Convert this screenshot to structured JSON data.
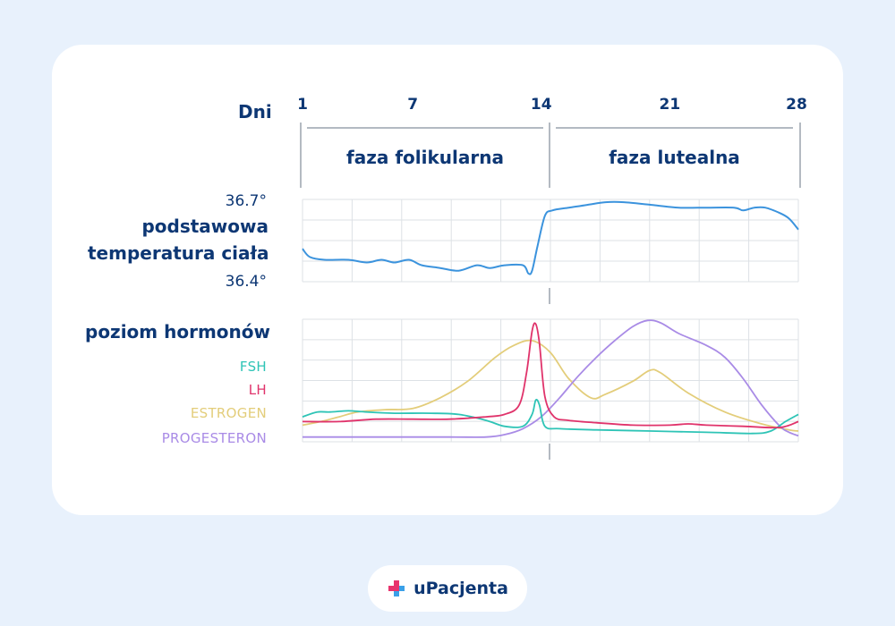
{
  "brand": {
    "name": "uPacjenta",
    "colors": {
      "primary": "#0d3774",
      "accent_pink": "#e8336d",
      "accent_blue": "#3aa0e8"
    },
    "icon": "plus-cross-icon"
  },
  "chart_data": {
    "type": "line",
    "days_title": "Dni",
    "x_ticks": [
      1,
      7,
      14,
      21,
      28
    ],
    "xlim": [
      1,
      28
    ],
    "phases": [
      {
        "label": "faza folikularna",
        "from": 1,
        "to": 14
      },
      {
        "label": "faza lutealna",
        "from": 14,
        "to": 28
      }
    ],
    "temperature": {
      "title_line1": "podstawowa",
      "title_line2": "temperatura ciała",
      "ymax_label": "36.7°",
      "ymin_label": "36.4°",
      "ylim": [
        36.4,
        36.7
      ],
      "color": "#3b93dd",
      "series": [
        {
          "name": "",
          "values": [
            [
              1,
              36.52
            ],
            [
              1.4,
              36.49
            ],
            [
              2.2,
              36.48
            ],
            [
              3.5,
              36.48
            ],
            [
              4.5,
              36.47
            ],
            [
              5.3,
              36.48
            ],
            [
              6,
              36.47
            ],
            [
              6.8,
              36.48
            ],
            [
              7.5,
              36.46
            ],
            [
              8.5,
              36.45
            ],
            [
              9.5,
              36.44
            ],
            [
              10.5,
              36.46
            ],
            [
              11.2,
              36.45
            ],
            [
              12,
              36.46
            ],
            [
              13,
              36.46
            ],
            [
              13.3,
              36.43
            ],
            [
              13.5,
              36.44
            ],
            [
              13.8,
              36.53
            ],
            [
              14.2,
              36.64
            ],
            [
              14.6,
              36.66
            ],
            [
              15.5,
              36.67
            ],
            [
              16.5,
              36.68
            ],
            [
              17.5,
              36.69
            ],
            [
              18.5,
              36.69
            ],
            [
              20,
              36.68
            ],
            [
              21.5,
              36.67
            ],
            [
              23,
              36.67
            ],
            [
              24.5,
              36.67
            ],
            [
              25,
              36.66
            ],
            [
              25.6,
              36.67
            ],
            [
              26.2,
              36.67
            ],
            [
              27,
              36.65
            ],
            [
              27.5,
              36.63
            ],
            [
              28,
              36.59
            ]
          ]
        }
      ]
    },
    "hormones": {
      "title": "poziom hormonów",
      "ylim": [
        0,
        100
      ],
      "series": [
        {
          "name": "FSH",
          "color": "#2ec4b6",
          "values": [
            [
              1,
              18
            ],
            [
              1.8,
              22
            ],
            [
              2.5,
              22
            ],
            [
              3.5,
              23
            ],
            [
              4.5,
              22
            ],
            [
              6,
              21
            ],
            [
              8,
              21
            ],
            [
              9.5,
              20
            ],
            [
              11,
              15
            ],
            [
              12,
              10
            ],
            [
              13,
              10
            ],
            [
              13.5,
              20
            ],
            [
              13.7,
              32
            ],
            [
              13.9,
              28
            ],
            [
              14.2,
              10
            ],
            [
              15,
              8
            ],
            [
              17,
              7
            ],
            [
              20,
              6
            ],
            [
              23,
              5
            ],
            [
              25.5,
              4
            ],
            [
              26.5,
              6
            ],
            [
              27.3,
              14
            ],
            [
              28,
              20
            ]
          ]
        },
        {
          "name": "LH",
          "color": "#e0336b",
          "values": [
            [
              1,
              14
            ],
            [
              3,
              14
            ],
            [
              5,
              16
            ],
            [
              7,
              16
            ],
            [
              9,
              16
            ],
            [
              11,
              18
            ],
            [
              12,
              20
            ],
            [
              12.8,
              28
            ],
            [
              13.2,
              55
            ],
            [
              13.5,
              90
            ],
            [
              13.7,
              96
            ],
            [
              13.9,
              80
            ],
            [
              14.2,
              35
            ],
            [
              14.7,
              18
            ],
            [
              15.5,
              15
            ],
            [
              17,
              13
            ],
            [
              19,
              11
            ],
            [
              21,
              11
            ],
            [
              22,
              12
            ],
            [
              23,
              11
            ],
            [
              25,
              10
            ],
            [
              27,
              9
            ],
            [
              28,
              14
            ]
          ]
        },
        {
          "name": "ESTROGEN",
          "color": "#e3cd7a",
          "values": [
            [
              1,
              11
            ],
            [
              2,
              14
            ],
            [
              3,
              18
            ],
            [
              4,
              22
            ],
            [
              5.5,
              24
            ],
            [
              7,
              25
            ],
            [
              8.5,
              34
            ],
            [
              10,
              48
            ],
            [
              11.5,
              68
            ],
            [
              12.5,
              78
            ],
            [
              13.5,
              82
            ],
            [
              14.5,
              72
            ],
            [
              15.5,
              50
            ],
            [
              16.7,
              34
            ],
            [
              17.5,
              37
            ],
            [
              19,
              48
            ],
            [
              19.9,
              57
            ],
            [
              20.5,
              55
            ],
            [
              22,
              38
            ],
            [
              24,
              22
            ],
            [
              26,
              12
            ],
            [
              27.5,
              7
            ],
            [
              28,
              6
            ]
          ]
        },
        {
          "name": "PROGESTERON",
          "color": "#a98be6",
          "values": [
            [
              1,
              1
            ],
            [
              5,
              1
            ],
            [
              9,
              1
            ],
            [
              11,
              1
            ],
            [
              12,
              3
            ],
            [
              13,
              8
            ],
            [
              14,
              18
            ],
            [
              15,
              34
            ],
            [
              16,
              52
            ],
            [
              17,
              68
            ],
            [
              18,
              82
            ],
            [
              19,
              94
            ],
            [
              19.8,
              99
            ],
            [
              20.5,
              97
            ],
            [
              21.5,
              88
            ],
            [
              23,
              78
            ],
            [
              24,
              68
            ],
            [
              25,
              50
            ],
            [
              26,
              28
            ],
            [
              27,
              10
            ],
            [
              27.5,
              5
            ],
            [
              28,
              2
            ]
          ]
        }
      ]
    }
  }
}
